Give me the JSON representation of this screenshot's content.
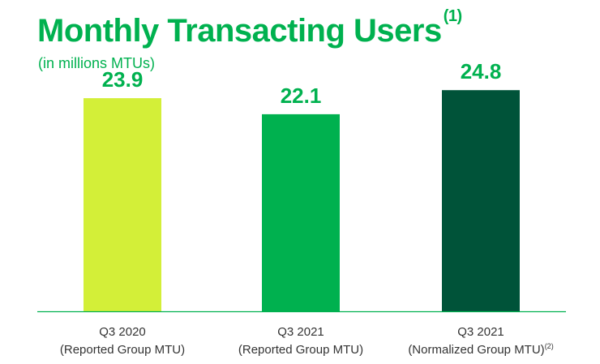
{
  "header": {
    "title": "Monthly Transacting Users",
    "title_footnote": "(1)",
    "subtitle": "(in millions MTUs)"
  },
  "colors": {
    "title": "#00b14f",
    "subtitle": "#00b14f",
    "value_label": "#00b14f",
    "axis": "#00b14f",
    "category_text": "#333333"
  },
  "chart_data": {
    "type": "bar",
    "title": "Monthly Transacting Users",
    "subtitle": "(in millions MTUs)",
    "xlabel": "",
    "ylabel": "",
    "ylim": [
      0,
      30
    ],
    "grid": false,
    "categories": [
      {
        "line1": "Q3 2020",
        "line2": "(Reported Group MTU)",
        "footnote": ""
      },
      {
        "line1": "Q3 2021",
        "line2": "(Reported Group MTU)",
        "footnote": ""
      },
      {
        "line1": "Q3 2021",
        "line2": "(Normalized Group MTU)",
        "footnote": "(2)"
      }
    ],
    "values": [
      23.9,
      22.1,
      24.8
    ],
    "value_labels": [
      "23.9",
      "22.1",
      "24.8"
    ],
    "bar_colors": [
      "#d3ef38",
      "#00b14f",
      "#005339"
    ]
  }
}
